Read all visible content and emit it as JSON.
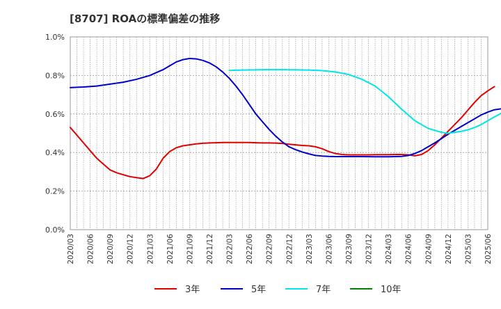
{
  "chart_data": {
    "type": "line",
    "title": "[8707]  ROAの標準偏差の推移",
    "xlabel": "",
    "ylabel": "",
    "ylim": [
      0,
      1.0
    ],
    "yticks": [
      0,
      0.2,
      0.4,
      0.6,
      0.8,
      1.0
    ],
    "ytick_labels": [
      "0.0%",
      "0.2%",
      "0.4%",
      "0.6%",
      "0.8%",
      "1.0%"
    ],
    "x_ticks": [
      "2020/03",
      "2020/06",
      "2020/09",
      "2020/12",
      "2021/03",
      "2021/06",
      "2021/09",
      "2021/12",
      "2022/03",
      "2022/06",
      "2022/09",
      "2022/12",
      "2023/03",
      "2023/06",
      "2023/09",
      "2023/12",
      "2024/03",
      "2024/06",
      "2024/09",
      "2024/12",
      "2025/03",
      "2025/06"
    ],
    "x_months_range": [
      0,
      63
    ],
    "grid": true,
    "legend_position": "bottom",
    "series": [
      {
        "name": "3年",
        "color": "#e00000",
        "points": [
          [
            0,
            0.53
          ],
          [
            1,
            0.49
          ],
          [
            2,
            0.45
          ],
          [
            3,
            0.41
          ],
          [
            4,
            0.37
          ],
          [
            5,
            0.34
          ],
          [
            6,
            0.31
          ],
          [
            7,
            0.295
          ],
          [
            8,
            0.285
          ],
          [
            9,
            0.275
          ],
          [
            10,
            0.27
          ],
          [
            11,
            0.265
          ],
          [
            12,
            0.28
          ],
          [
            13,
            0.315
          ],
          [
            14,
            0.37
          ],
          [
            15,
            0.405
          ],
          [
            16,
            0.425
          ],
          [
            17,
            0.435
          ],
          [
            18,
            0.44
          ],
          [
            19,
            0.445
          ],
          [
            20,
            0.448
          ],
          [
            21,
            0.45
          ],
          [
            22,
            0.451
          ],
          [
            23,
            0.452
          ],
          [
            24,
            0.452
          ],
          [
            25,
            0.452
          ],
          [
            26,
            0.452
          ],
          [
            27,
            0.452
          ],
          [
            28,
            0.451
          ],
          [
            29,
            0.45
          ],
          [
            30,
            0.45
          ],
          [
            31,
            0.449
          ],
          [
            32,
            0.447
          ],
          [
            33,
            0.443
          ],
          [
            34,
            0.44
          ],
          [
            35,
            0.437
          ],
          [
            36,
            0.435
          ],
          [
            37,
            0.43
          ],
          [
            38,
            0.42
          ],
          [
            39,
            0.405
          ],
          [
            40,
            0.395
          ],
          [
            41,
            0.39
          ],
          [
            42,
            0.388
          ],
          [
            43,
            0.388
          ],
          [
            44,
            0.388
          ],
          [
            45,
            0.388
          ],
          [
            46,
            0.389
          ],
          [
            47,
            0.389
          ],
          [
            48,
            0.389
          ],
          [
            49,
            0.39
          ],
          [
            50,
            0.39
          ],
          [
            51,
            0.388
          ],
          [
            52,
            0.383
          ],
          [
            53,
            0.39
          ],
          [
            54,
            0.41
          ],
          [
            55,
            0.44
          ],
          [
            56,
            0.475
          ],
          [
            57,
            0.51
          ],
          [
            58,
            0.545
          ],
          [
            59,
            0.58
          ],
          [
            60,
            0.62
          ],
          [
            61,
            0.66
          ],
          [
            62,
            0.695
          ],
          [
            63,
            0.72
          ],
          [
            64,
            0.742
          ]
        ]
      },
      {
        "name": "5年",
        "color": "#0000cc",
        "points": [
          [
            0,
            0.737
          ],
          [
            2,
            0.74
          ],
          [
            4,
            0.745
          ],
          [
            6,
            0.755
          ],
          [
            8,
            0.765
          ],
          [
            10,
            0.78
          ],
          [
            12,
            0.8
          ],
          [
            14,
            0.83
          ],
          [
            16,
            0.87
          ],
          [
            17,
            0.882
          ],
          [
            18,
            0.888
          ],
          [
            19,
            0.886
          ],
          [
            20,
            0.878
          ],
          [
            21,
            0.865
          ],
          [
            22,
            0.845
          ],
          [
            23,
            0.818
          ],
          [
            24,
            0.785
          ],
          [
            25,
            0.745
          ],
          [
            26,
            0.7
          ],
          [
            28,
            0.6
          ],
          [
            30,
            0.52
          ],
          [
            31,
            0.485
          ],
          [
            32,
            0.455
          ],
          [
            33,
            0.43
          ],
          [
            34,
            0.415
          ],
          [
            35,
            0.403
          ],
          [
            36,
            0.393
          ],
          [
            37,
            0.385
          ],
          [
            38,
            0.382
          ],
          [
            39,
            0.38
          ],
          [
            40,
            0.379
          ],
          [
            42,
            0.379
          ],
          [
            44,
            0.379
          ],
          [
            46,
            0.378
          ],
          [
            48,
            0.378
          ],
          [
            49,
            0.379
          ],
          [
            50,
            0.38
          ],
          [
            51,
            0.385
          ],
          [
            52,
            0.395
          ],
          [
            53,
            0.41
          ],
          [
            54,
            0.43
          ],
          [
            55,
            0.45
          ],
          [
            56,
            0.472
          ],
          [
            57,
            0.495
          ],
          [
            58,
            0.515
          ],
          [
            59,
            0.535
          ],
          [
            60,
            0.555
          ],
          [
            61,
            0.575
          ],
          [
            62,
            0.595
          ],
          [
            63,
            0.61
          ],
          [
            64,
            0.622
          ],
          [
            65,
            0.627
          ]
        ]
      },
      {
        "name": "7年",
        "color": "#00e5e5",
        "points": [
          [
            24,
            0.826
          ],
          [
            26,
            0.828
          ],
          [
            28,
            0.829
          ],
          [
            30,
            0.83
          ],
          [
            32,
            0.83
          ],
          [
            34,
            0.829
          ],
          [
            36,
            0.828
          ],
          [
            38,
            0.825
          ],
          [
            40,
            0.818
          ],
          [
            42,
            0.805
          ],
          [
            44,
            0.78
          ],
          [
            46,
            0.745
          ],
          [
            48,
            0.69
          ],
          [
            50,
            0.625
          ],
          [
            52,
            0.565
          ],
          [
            54,
            0.525
          ],
          [
            56,
            0.505
          ],
          [
            57,
            0.5
          ],
          [
            58,
            0.505
          ],
          [
            59,
            0.51
          ],
          [
            60,
            0.518
          ],
          [
            61,
            0.53
          ],
          [
            62,
            0.545
          ],
          [
            63,
            0.565
          ],
          [
            64,
            0.585
          ],
          [
            65,
            0.603
          ]
        ]
      },
      {
        "name": "10年",
        "color": "#008000",
        "points": []
      }
    ]
  }
}
